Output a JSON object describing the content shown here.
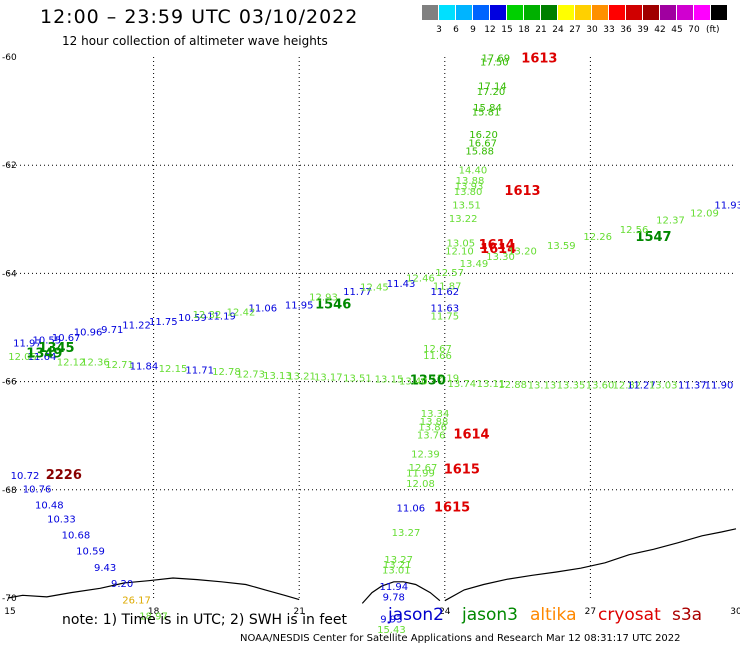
{
  "header": {
    "title": "12:00 – 23:59 UTC 03/10/2022",
    "subtitle": "12 hour collection of altimeter wave heights"
  },
  "legend": {
    "unit": "(ft)",
    "bins": [
      {
        "color": "#808080",
        "label": ""
      },
      {
        "color": "#00e0ff",
        "label": "3"
      },
      {
        "color": "#00b4ff",
        "label": "6"
      },
      {
        "color": "#0064ff",
        "label": "9"
      },
      {
        "color": "#0000e0",
        "label": "12"
      },
      {
        "color": "#00d000",
        "label": "15"
      },
      {
        "color": "#00b000",
        "label": "18"
      },
      {
        "color": "#008000",
        "label": "21"
      },
      {
        "color": "#ffff00",
        "label": "24"
      },
      {
        "color": "#ffd000",
        "label": "27"
      },
      {
        "color": "#ff9000",
        "label": "30"
      },
      {
        "color": "#ff0000",
        "label": "33"
      },
      {
        "color": "#d00000",
        "label": "36"
      },
      {
        "color": "#a00000",
        "label": "39"
      },
      {
        "color": "#a000a0",
        "label": "42"
      },
      {
        "color": "#d000d0",
        "label": "45"
      },
      {
        "color": "#ff00ff",
        "label": "70"
      },
      {
        "color": "#000000",
        "label": ""
      }
    ]
  },
  "map": {
    "lon_range": [
      15,
      30
    ],
    "lat_range": [
      -70,
      -60
    ],
    "x_ticks": [
      {
        "value": 15,
        "label": "15"
      },
      {
        "value": 18,
        "label": "18"
      },
      {
        "value": 21,
        "label": "21"
      },
      {
        "value": 24,
        "label": "24"
      },
      {
        "value": 27,
        "label": "27"
      },
      {
        "value": 30,
        "label": "30"
      }
    ],
    "y_ticks": [
      {
        "value": -60,
        "label": "-60"
      },
      {
        "value": -62,
        "label": "-62"
      },
      {
        "value": -64,
        "label": "-64"
      },
      {
        "value": -66,
        "label": "-66"
      },
      {
        "value": -68,
        "label": "-68"
      },
      {
        "value": -70,
        "label": "-70"
      }
    ],
    "grid": "dotted",
    "coastline": true
  },
  "chart_data": {
    "type": "scatter",
    "x_axis": "longitude",
    "y_axis": "latitude",
    "value": "significant wave height (ft)",
    "points": [
      {
        "x": 25.05,
        "y": -60.08,
        "text": "17.69",
        "color": "#33bb00"
      },
      {
        "x": 25.02,
        "y": -60.16,
        "text": "17.50",
        "color": "#33bb00"
      },
      {
        "x": 25.95,
        "y": -60.1,
        "text": "1613",
        "color": "#dd0000",
        "bold": true
      },
      {
        "x": 24.98,
        "y": -60.6,
        "text": "17.14",
        "color": "#33bb00"
      },
      {
        "x": 24.95,
        "y": -60.7,
        "text": "17.20",
        "color": "#33bb00"
      },
      {
        "x": 24.88,
        "y": -61.0,
        "text": "15.84",
        "color": "#33bb00"
      },
      {
        "x": 24.85,
        "y": -61.08,
        "text": "15.81",
        "color": "#33bb00"
      },
      {
        "x": 24.8,
        "y": -61.5,
        "text": "16.20",
        "color": "#33bb00"
      },
      {
        "x": 24.78,
        "y": -61.65,
        "text": "16.67",
        "color": "#33bb00"
      },
      {
        "x": 24.72,
        "y": -61.8,
        "text": "15.88",
        "color": "#33bb00"
      },
      {
        "x": 24.58,
        "y": -62.15,
        "text": "14.40",
        "color": "#66dd33"
      },
      {
        "x": 24.52,
        "y": -62.35,
        "text": "13.88",
        "color": "#66dd33"
      },
      {
        "x": 24.5,
        "y": -62.45,
        "text": "13.93",
        "color": "#66dd33"
      },
      {
        "x": 24.48,
        "y": -62.55,
        "text": "13.80",
        "color": "#66dd33"
      },
      {
        "x": 25.6,
        "y": -62.55,
        "text": "1613",
        "color": "#dd0000",
        "bold": true
      },
      {
        "x": 24.45,
        "y": -62.8,
        "text": "13.51",
        "color": "#66dd33"
      },
      {
        "x": 24.38,
        "y": -63.05,
        "text": "13.22",
        "color": "#66dd33"
      },
      {
        "x": 24.33,
        "y": -63.5,
        "text": "13.05",
        "color": "#66dd33"
      },
      {
        "x": 24.3,
        "y": -63.65,
        "text": "12.10",
        "color": "#66dd33"
      },
      {
        "x": 25.07,
        "y": -63.55,
        "text": "1614",
        "color": "#dd0000",
        "bold": true
      },
      {
        "x": 25.1,
        "y": -63.62,
        "text": "1614",
        "color": "#dd0000",
        "bold": true
      },
      {
        "x": 24.1,
        "y": -64.05,
        "text": "12.57",
        "color": "#66dd33"
      },
      {
        "x": 24.05,
        "y": -64.3,
        "text": "11.87",
        "color": "#66dd33"
      },
      {
        "x": 24.0,
        "y": -64.4,
        "text": "11.62",
        "color": "#0000dd"
      },
      {
        "x": 24.0,
        "y": -64.7,
        "text": "11.63",
        "color": "#0000dd"
      },
      {
        "x": 24.0,
        "y": -64.85,
        "text": "11.75",
        "color": "#66dd33"
      },
      {
        "x": 23.85,
        "y": -65.45,
        "text": "12.67",
        "color": "#66dd33"
      },
      {
        "x": 23.85,
        "y": -65.58,
        "text": "11.66",
        "color": "#66dd33"
      },
      {
        "x": 24.0,
        "y": -66.0,
        "text": "12.19",
        "color": "#66dd33"
      },
      {
        "x": 23.65,
        "y": -66.05,
        "text": "1350",
        "color": "#008800",
        "bold": true
      },
      {
        "x": 23.8,
        "y": -66.65,
        "text": "13.34",
        "color": "#66dd33"
      },
      {
        "x": 23.78,
        "y": -66.8,
        "text": "13.88",
        "color": "#66dd33"
      },
      {
        "x": 23.75,
        "y": -66.9,
        "text": "13.86",
        "color": "#66dd33"
      },
      {
        "x": 23.72,
        "y": -67.05,
        "text": "13.76",
        "color": "#66dd33"
      },
      {
        "x": 24.55,
        "y": -67.05,
        "text": "1614",
        "color": "#dd0000",
        "bold": true
      },
      {
        "x": 23.6,
        "y": -67.4,
        "text": "12.39",
        "color": "#66dd33"
      },
      {
        "x": 23.55,
        "y": -67.65,
        "text": "12.67",
        "color": "#66dd33"
      },
      {
        "x": 23.5,
        "y": -67.75,
        "text": "11.99",
        "color": "#66dd33"
      },
      {
        "x": 24.35,
        "y": -67.7,
        "text": "1615",
        "color": "#dd0000",
        "bold": true
      },
      {
        "x": 23.5,
        "y": -67.95,
        "text": "12.08",
        "color": "#66dd33"
      },
      {
        "x": 23.3,
        "y": -68.4,
        "text": "11.06",
        "color": "#0000dd"
      },
      {
        "x": 24.15,
        "y": -68.4,
        "text": "1615",
        "color": "#dd0000",
        "bold": true
      },
      {
        "x": 23.2,
        "y": -68.85,
        "text": "13.27",
        "color": "#66dd33"
      },
      {
        "x": 23.05,
        "y": -69.35,
        "text": "13.27",
        "color": "#66dd33"
      },
      {
        "x": 23.02,
        "y": -69.45,
        "text": "13.21",
        "color": "#66dd33"
      },
      {
        "x": 23.0,
        "y": -69.55,
        "text": "13.01",
        "color": "#66dd33"
      },
      {
        "x": 22.95,
        "y": -69.85,
        "text": "11.94",
        "color": "#0000dd"
      },
      {
        "x": 22.95,
        "y": -70.05,
        "text": "9.78",
        "color": "#0000dd"
      },
      {
        "x": 22.9,
        "y": -70.45,
        "text": "9.93",
        "color": "#0000dd"
      },
      {
        "x": 22.9,
        "y": -70.65,
        "text": "15.43",
        "color": "#66dd33"
      },
      {
        "x": 15.4,
        "y": -65.35,
        "text": "11.97",
        "color": "#0000dd"
      },
      {
        "x": 15.8,
        "y": -65.3,
        "text": "10.55",
        "color": "#0000dd"
      },
      {
        "x": 16.2,
        "y": -65.25,
        "text": "10.67",
        "color": "#0000dd"
      },
      {
        "x": 16.65,
        "y": -65.15,
        "text": "10.96",
        "color": "#0000dd"
      },
      {
        "x": 17.15,
        "y": -65.1,
        "text": "9.71",
        "color": "#0000dd"
      },
      {
        "x": 17.65,
        "y": -65.02,
        "text": "11.22",
        "color": "#0000dd"
      },
      {
        "x": 18.2,
        "y": -64.95,
        "text": "11.75",
        "color": "#0000dd"
      },
      {
        "x": 18.8,
        "y": -64.88,
        "text": "10.59",
        "color": "#0000dd"
      },
      {
        "x": 19.4,
        "y": -64.85,
        "text": "11.19",
        "color": "#0000dd"
      },
      {
        "x": 20.25,
        "y": -64.7,
        "text": "11.06",
        "color": "#0000dd"
      },
      {
        "x": 21.0,
        "y": -64.65,
        "text": "11.95",
        "color": "#0000dd"
      },
      {
        "x": 22.2,
        "y": -64.4,
        "text": "11.77",
        "color": "#0000dd"
      },
      {
        "x": 23.1,
        "y": -64.25,
        "text": "11.43",
        "color": "#0000dd"
      },
      {
        "x": 16.0,
        "y": -65.45,
        "text": "1345",
        "color": "#008800",
        "bold": true
      },
      {
        "x": 21.7,
        "y": -64.65,
        "text": "1546",
        "color": "#008800",
        "bold": true
      },
      {
        "x": 28.3,
        "y": -63.4,
        "text": "1547",
        "color": "#008800",
        "bold": true
      },
      {
        "x": 29.85,
        "y": -62.8,
        "text": "11.93",
        "color": "#0000dd"
      },
      {
        "x": 19.1,
        "y": -64.82,
        "text": "12.32",
        "color": "#66dd33"
      },
      {
        "x": 19.8,
        "y": -64.78,
        "text": "12.42",
        "color": "#66dd33"
      },
      {
        "x": 21.5,
        "y": -64.5,
        "text": "12.93",
        "color": "#66dd33"
      },
      {
        "x": 22.55,
        "y": -64.32,
        "text": "12.45",
        "color": "#66dd33"
      },
      {
        "x": 23.5,
        "y": -64.15,
        "text": "12.46",
        "color": "#66dd33"
      },
      {
        "x": 24.6,
        "y": -63.88,
        "text": "13.49",
        "color": "#66dd33"
      },
      {
        "x": 25.15,
        "y": -63.75,
        "text": "13.30",
        "color": "#66dd33"
      },
      {
        "x": 25.6,
        "y": -63.65,
        "text": "13.20",
        "color": "#66dd33"
      },
      {
        "x": 26.4,
        "y": -63.55,
        "text": "13.59",
        "color": "#66dd33"
      },
      {
        "x": 27.15,
        "y": -63.38,
        "text": "12.26",
        "color": "#66dd33"
      },
      {
        "x": 27.9,
        "y": -63.25,
        "text": "12.56",
        "color": "#66dd33"
      },
      {
        "x": 28.65,
        "y": -63.08,
        "text": "12.37",
        "color": "#66dd33"
      },
      {
        "x": 29.35,
        "y": -62.95,
        "text": "12.09",
        "color": "#66dd33"
      },
      {
        "x": 15.3,
        "y": -65.6,
        "text": "12.05",
        "color": "#66dd33"
      },
      {
        "x": 15.7,
        "y": -65.6,
        "text": "11.64",
        "color": "#0000dd"
      },
      {
        "x": 15.75,
        "y": -65.55,
        "text": "1349",
        "color": "#008800",
        "bold": true
      },
      {
        "x": 16.3,
        "y": -65.7,
        "text": "12.12",
        "color": "#66dd33"
      },
      {
        "x": 16.8,
        "y": -65.7,
        "text": "12.36",
        "color": "#66dd33"
      },
      {
        "x": 17.3,
        "y": -65.75,
        "text": "12.71",
        "color": "#66dd33"
      },
      {
        "x": 17.8,
        "y": -65.78,
        "text": "11.84",
        "color": "#0000dd"
      },
      {
        "x": 18.4,
        "y": -65.82,
        "text": "12.15",
        "color": "#66dd33"
      },
      {
        "x": 18.95,
        "y": -65.85,
        "text": "11.71",
        "color": "#0000dd"
      },
      {
        "x": 19.5,
        "y": -65.88,
        "text": "12.78",
        "color": "#66dd33"
      },
      {
        "x": 20.0,
        "y": -65.92,
        "text": "12.73",
        "color": "#66dd33"
      },
      {
        "x": 20.55,
        "y": -65.95,
        "text": "13.13",
        "color": "#66dd33"
      },
      {
        "x": 21.05,
        "y": -65.96,
        "text": "13.21",
        "color": "#66dd33"
      },
      {
        "x": 21.6,
        "y": -65.98,
        "text": "13.17",
        "color": "#66dd33"
      },
      {
        "x": 22.2,
        "y": -66.0,
        "text": "13.51",
        "color": "#66dd33"
      },
      {
        "x": 22.85,
        "y": -66.02,
        "text": "13.15",
        "color": "#66dd33"
      },
      {
        "x": 23.35,
        "y": -66.05,
        "text": "13.40",
        "color": "#66dd33"
      },
      {
        "x": 24.35,
        "y": -66.1,
        "text": "13.74",
        "color": "#66dd33"
      },
      {
        "x": 24.95,
        "y": -66.1,
        "text": "13.11",
        "color": "#66dd33"
      },
      {
        "x": 25.4,
        "y": -66.12,
        "text": "12.88",
        "color": "#66dd33"
      },
      {
        "x": 26.0,
        "y": -66.13,
        "text": "13.13",
        "color": "#66dd33"
      },
      {
        "x": 26.6,
        "y": -66.13,
        "text": "13.35",
        "color": "#66dd33"
      },
      {
        "x": 27.2,
        "y": -66.13,
        "text": "13.60",
        "color": "#66dd33"
      },
      {
        "x": 27.75,
        "y": -66.13,
        "text": "12.82",
        "color": "#66dd33"
      },
      {
        "x": 28.05,
        "y": -66.13,
        "text": "11.27",
        "color": "#0000dd"
      },
      {
        "x": 28.5,
        "y": -66.13,
        "text": "13.03",
        "color": "#66dd33"
      },
      {
        "x": 29.1,
        "y": -66.13,
        "text": "11.37",
        "color": "#0000dd"
      },
      {
        "x": 29.65,
        "y": -66.13,
        "text": "11.90",
        "color": "#0000dd"
      },
      {
        "x": 15.35,
        "y": -67.8,
        "text": "10.72",
        "color": "#0000dd"
      },
      {
        "x": 16.15,
        "y": -67.8,
        "text": "2226",
        "color": "#880000",
        "bold": true
      },
      {
        "x": 15.6,
        "y": -68.05,
        "text": "10.76",
        "color": "#0000dd"
      },
      {
        "x": 15.85,
        "y": -68.35,
        "text": "10.48",
        "color": "#0000dd"
      },
      {
        "x": 16.1,
        "y": -68.6,
        "text": "10.33",
        "color": "#0000dd"
      },
      {
        "x": 16.4,
        "y": -68.9,
        "text": "10.68",
        "color": "#0000dd"
      },
      {
        "x": 16.7,
        "y": -69.2,
        "text": "10.59",
        "color": "#0000dd"
      },
      {
        "x": 17.0,
        "y": -69.5,
        "text": "9.43",
        "color": "#0000dd"
      },
      {
        "x": 17.35,
        "y": -69.8,
        "text": "9.20",
        "color": "#0000dd"
      },
      {
        "x": 17.65,
        "y": -70.1,
        "text": "26.17",
        "color": "#ddaa00"
      },
      {
        "x": 18.0,
        "y": -70.4,
        "text": "18.97",
        "color": "#66dd33"
      }
    ]
  },
  "note": "note: 1) Time is in UTC; 2) SWH is in feet",
  "satellites": [
    {
      "name": "jason2",
      "color": "#0000cc"
    },
    {
      "name": "jason3",
      "color": "#008800"
    },
    {
      "name": "altika",
      "color": "#ff8800"
    },
    {
      "name": "cryosat",
      "color": "#dd0000"
    },
    {
      "name": "s3a",
      "color": "#aa0000"
    }
  ],
  "footer": "NOAA/NESDIS Center for Satellite Applications and Research    Mar 12 08:31:17 UTC 2022"
}
